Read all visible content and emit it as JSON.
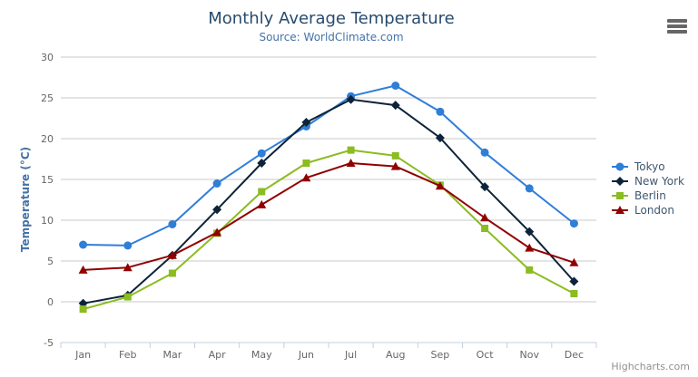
{
  "header": {
    "title": "Monthly Average Temperature",
    "subtitle": "Source: WorldClimate.com"
  },
  "credit_label": "Highcharts.com",
  "context_menu_icon": "hamburger-icon",
  "chart_data": {
    "type": "line",
    "title": "Monthly Average Temperature",
    "subtitle": "Source: WorldClimate.com",
    "categories": [
      "Jan",
      "Feb",
      "Mar",
      "Apr",
      "May",
      "Jun",
      "Jul",
      "Aug",
      "Sep",
      "Oct",
      "Nov",
      "Dec"
    ],
    "series": [
      {
        "name": "Tokyo",
        "color": "#2f7ed8",
        "marker": "circle",
        "values": [
          7.0,
          6.9,
          9.5,
          14.5,
          18.2,
          21.5,
          25.2,
          26.5,
          23.3,
          18.3,
          13.9,
          9.6
        ]
      },
      {
        "name": "New York",
        "color": "#0d233a",
        "marker": "diamond",
        "values": [
          -0.2,
          0.8,
          5.7,
          11.3,
          17.0,
          22.0,
          24.8,
          24.1,
          20.1,
          14.1,
          8.6,
          2.5
        ]
      },
      {
        "name": "Berlin",
        "color": "#8bbc21",
        "marker": "square",
        "values": [
          -0.9,
          0.6,
          3.5,
          8.4,
          13.5,
          17.0,
          18.6,
          17.9,
          14.3,
          9.0,
          3.9,
          1.0
        ]
      },
      {
        "name": "London",
        "color": "#910000",
        "marker": "triangle",
        "values": [
          3.9,
          4.2,
          5.7,
          8.5,
          11.9,
          15.2,
          17.0,
          16.6,
          14.2,
          10.3,
          6.6,
          4.8
        ]
      }
    ],
    "xlabel": "",
    "ylabel": "Temperature (°C)",
    "ylim": [
      -5,
      30
    ],
    "yticks": [
      -5,
      0,
      5,
      10,
      15,
      20,
      25,
      30
    ],
    "grid": true,
    "legend_position": "right"
  }
}
